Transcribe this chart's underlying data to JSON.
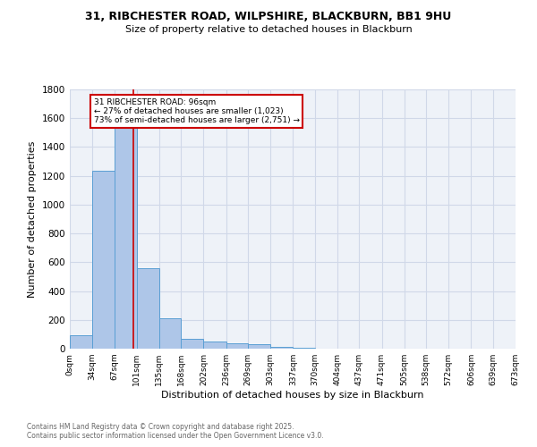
{
  "title_line1": "31, RIBCHESTER ROAD, WILPSHIRE, BLACKBURN, BB1 9HU",
  "title_line2": "Size of property relative to detached houses in Blackburn",
  "xlabel": "Distribution of detached houses by size in Blackburn",
  "ylabel": "Number of detached properties",
  "bar_edges": [
    0,
    34,
    67,
    101,
    135,
    168,
    202,
    236,
    269,
    303,
    337,
    370,
    404,
    437,
    471,
    505,
    538,
    572,
    606,
    639,
    673
  ],
  "bar_heights": [
    95,
    1235,
    1680,
    560,
    210,
    70,
    48,
    38,
    28,
    15,
    8,
    3,
    2,
    1,
    0,
    0,
    0,
    0,
    0,
    0
  ],
  "bar_color": "#aec6e8",
  "bar_edge_color": "#5a9fd4",
  "grid_color": "#d0d8e8",
  "background_color": "#eef2f8",
  "property_size": 96,
  "red_line_x": 96,
  "annotation_text": "31 RIBCHESTER ROAD: 96sqm\n← 27% of detached houses are smaller (1,023)\n73% of semi-detached houses are larger (2,751) →",
  "annotation_box_color": "#ffffff",
  "annotation_border_color": "#cc0000",
  "tick_labels": [
    "0sqm",
    "34sqm",
    "67sqm",
    "101sqm",
    "135sqm",
    "168sqm",
    "202sqm",
    "236sqm",
    "269sqm",
    "303sqm",
    "337sqm",
    "370sqm",
    "404sqm",
    "437sqm",
    "471sqm",
    "505sqm",
    "538sqm",
    "572sqm",
    "606sqm",
    "639sqm",
    "673sqm"
  ],
  "ylim": [
    0,
    1800
  ],
  "yticks": [
    0,
    200,
    400,
    600,
    800,
    1000,
    1200,
    1400,
    1600,
    1800
  ],
  "footnote1": "Contains HM Land Registry data © Crown copyright and database right 2025.",
  "footnote2": "Contains public sector information licensed under the Open Government Licence v3.0."
}
